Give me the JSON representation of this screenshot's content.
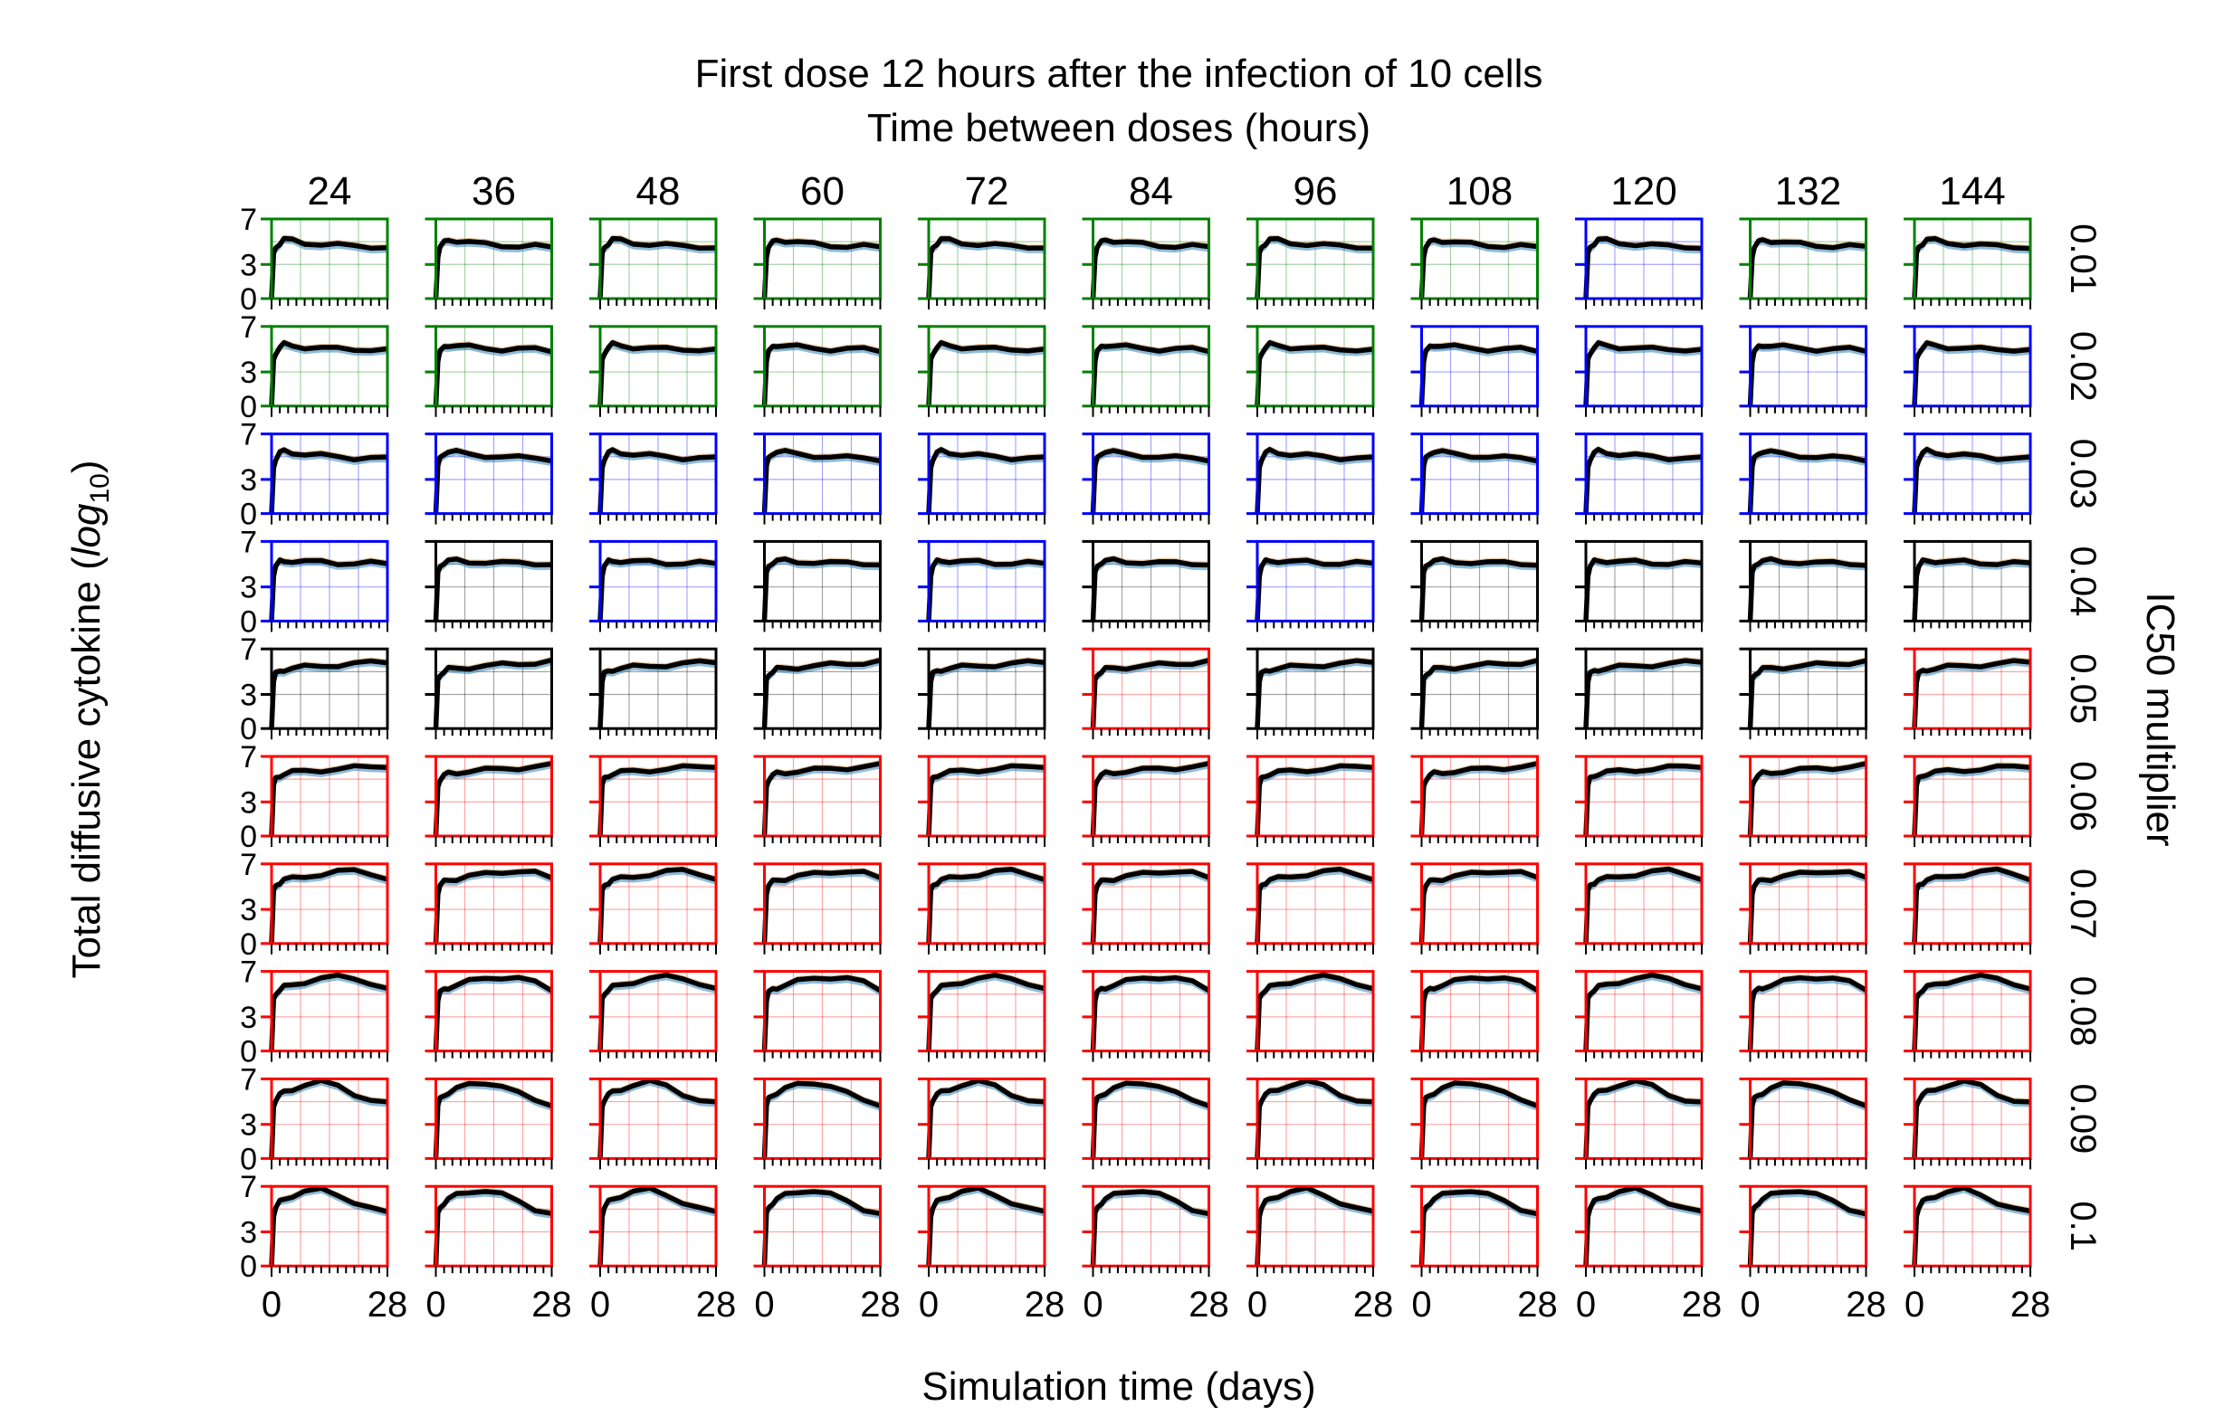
{
  "chart_data": {
    "type": "line",
    "title": "First dose 12 hours after the infection of 10 cells",
    "subtitle": "Time between doses (hours)",
    "xlabel": "Simulation time (days)",
    "ylabel": "Total diffusive cytokine (",
    "ylabel_math": "log",
    "ylabel_sub": "10",
    "ylabel_close": ")",
    "right_label": "IC50 multiplier",
    "xlim": [
      0,
      28
    ],
    "ylim": [
      0,
      7
    ],
    "x_tick_labels": [
      "0",
      "28"
    ],
    "y_tick_labels": [
      "0",
      "3",
      "7"
    ],
    "columns": [
      "24",
      "36",
      "48",
      "60",
      "72",
      "84",
      "96",
      "108",
      "120",
      "132",
      "144"
    ],
    "rows": [
      "0.01",
      "0.02",
      "0.03",
      "0.04",
      "0.05",
      "0.06",
      "0.07",
      "0.08",
      "0.09",
      "0.1"
    ],
    "frame_colors": {
      "g": "#008000",
      "b": "#0000ff",
      "k": "#000000",
      "r": "#ff0000"
    },
    "frame_grid": [
      [
        "g",
        "g",
        "g",
        "g",
        "g",
        "g",
        "g",
        "g",
        "b",
        "g",
        "g"
      ],
      [
        "g",
        "g",
        "g",
        "g",
        "g",
        "g",
        "g",
        "b",
        "b",
        "b",
        "b"
      ],
      [
        "b",
        "b",
        "b",
        "b",
        "b",
        "b",
        "b",
        "b",
        "b",
        "b",
        "b"
      ],
      [
        "b",
        "k",
        "b",
        "k",
        "b",
        "k",
        "b",
        "k",
        "k",
        "k",
        "k"
      ],
      [
        "k",
        "k",
        "k",
        "k",
        "k",
        "r",
        "k",
        "k",
        "k",
        "k",
        "r"
      ],
      [
        "r",
        "r",
        "r",
        "r",
        "r",
        "r",
        "r",
        "r",
        "r",
        "r",
        "r"
      ],
      [
        "r",
        "r",
        "r",
        "r",
        "r",
        "r",
        "r",
        "r",
        "r",
        "r",
        "r"
      ],
      [
        "r",
        "r",
        "r",
        "r",
        "r",
        "r",
        "r",
        "r",
        "r",
        "r",
        "r"
      ],
      [
        "r",
        "r",
        "r",
        "r",
        "r",
        "r",
        "r",
        "r",
        "r",
        "r",
        "r"
      ],
      [
        "r",
        "r",
        "r",
        "r",
        "r",
        "r",
        "r",
        "r",
        "r",
        "r",
        "r"
      ]
    ],
    "series_colors": {
      "mean": "#000000",
      "band_blue": "#1f77b4",
      "band_orange": "#d29a55"
    },
    "row_profiles": [
      {
        "ic50": "0.01",
        "x": [
          0,
          0.5,
          1,
          2,
          3,
          5,
          8,
          12,
          16,
          20,
          24,
          28
        ],
        "y": [
          0,
          3.8,
          4.5,
          4.9,
          5.2,
          5.1,
          4.9,
          4.8,
          4.7,
          4.6,
          4.6,
          4.5
        ]
      },
      {
        "ic50": "0.02",
        "x": [
          0,
          0.5,
          1,
          2,
          3,
          5,
          8,
          12,
          16,
          20,
          24,
          28
        ],
        "y": [
          0,
          4.0,
          4.7,
          5.2,
          5.4,
          5.3,
          5.2,
          5.1,
          5.0,
          5.0,
          5.0,
          4.9
        ]
      },
      {
        "ic50": "0.03",
        "x": [
          0,
          0.5,
          1,
          2,
          3,
          5,
          8,
          12,
          16,
          20,
          24,
          28
        ],
        "y": [
          0,
          4.1,
          4.8,
          5.3,
          5.5,
          5.4,
          5.2,
          5.1,
          5.0,
          4.9,
          4.9,
          4.8
        ]
      },
      {
        "ic50": "0.04",
        "x": [
          0,
          0.5,
          1,
          2,
          3,
          5,
          8,
          12,
          16,
          20,
          24,
          28
        ],
        "y": [
          0,
          4.1,
          4.8,
          5.2,
          5.3,
          5.3,
          5.2,
          5.2,
          5.1,
          5.1,
          5.1,
          5.0
        ]
      },
      {
        "ic50": "0.05",
        "x": [
          0,
          0.5,
          1,
          2,
          3,
          5,
          8,
          12,
          16,
          20,
          24,
          28
        ],
        "y": [
          0,
          4.2,
          4.8,
          5.0,
          5.2,
          5.3,
          5.4,
          5.5,
          5.6,
          5.7,
          5.8,
          5.9
        ]
      },
      {
        "ic50": "0.06",
        "x": [
          0,
          0.5,
          1,
          2,
          3,
          5,
          8,
          12,
          16,
          20,
          24,
          28
        ],
        "y": [
          0,
          4.4,
          5.0,
          5.3,
          5.5,
          5.6,
          5.7,
          5.8,
          5.9,
          6.0,
          6.1,
          6.2
        ]
      },
      {
        "ic50": "0.07",
        "x": [
          0,
          0.5,
          1,
          2,
          3,
          5,
          8,
          12,
          16,
          20,
          24,
          28
        ],
        "y": [
          0,
          4.5,
          5.1,
          5.4,
          5.6,
          5.7,
          5.9,
          6.1,
          6.3,
          6.4,
          6.2,
          5.7
        ]
      },
      {
        "ic50": "0.08",
        "x": [
          0,
          0.5,
          1,
          2,
          3,
          5,
          8,
          12,
          16,
          20,
          24,
          28
        ],
        "y": [
          0,
          4.5,
          5.1,
          5.4,
          5.6,
          5.8,
          6.1,
          6.4,
          6.5,
          6.4,
          6.0,
          5.4
        ]
      },
      {
        "ic50": "0.09",
        "x": [
          0,
          0.5,
          1,
          2,
          3,
          5,
          8,
          12,
          16,
          20,
          24,
          28
        ],
        "y": [
          0,
          4.6,
          5.2,
          5.6,
          5.8,
          6.1,
          6.5,
          6.7,
          6.4,
          5.7,
          5.1,
          4.8
        ]
      },
      {
        "ic50": "0.1",
        "x": [
          0,
          0.5,
          1,
          2,
          3,
          5,
          8,
          12,
          16,
          20,
          24,
          28
        ],
        "y": [
          0,
          4.5,
          5.1,
          5.6,
          5.9,
          6.2,
          6.5,
          6.7,
          6.3,
          5.6,
          5.0,
          4.7
        ]
      }
    ],
    "band_width": 0.35,
    "grid": true
  }
}
